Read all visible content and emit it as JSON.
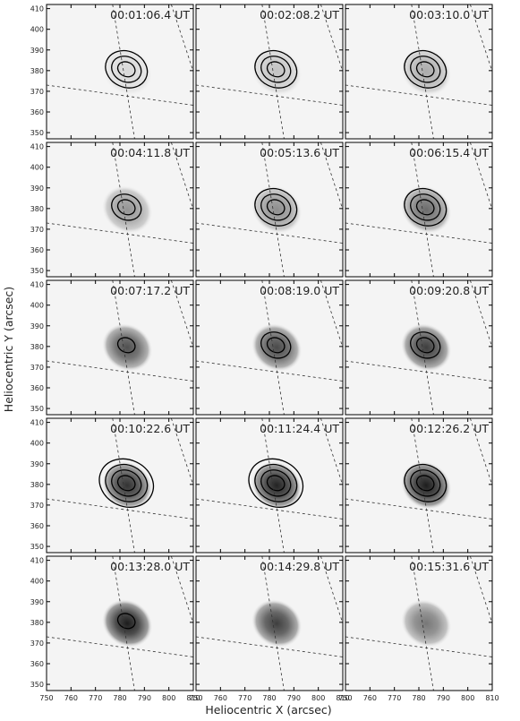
{
  "figure": {
    "x_label": "Heliocentric X (arcsec)",
    "y_label": "Heliocentric Y (arcsec)",
    "xlim": [
      750,
      810
    ],
    "ylim": [
      347,
      412
    ],
    "xticks": [
      750,
      760,
      770,
      780,
      790,
      800,
      810
    ],
    "yticks": [
      350,
      360,
      370,
      380,
      390,
      400,
      410
    ],
    "panels": [
      {
        "label": "00:01:06.4 UT"
      },
      {
        "label": "00:02:08.2 UT"
      },
      {
        "label": "00:03:10.0 UT"
      },
      {
        "label": "00:04:11.8 UT"
      },
      {
        "label": "00:05:13.6 UT"
      },
      {
        "label": "00:06:15.4 UT"
      },
      {
        "label": "00:07:17.2 UT"
      },
      {
        "label": "00:08:19.0 UT"
      },
      {
        "label": "00:09:20.8 UT"
      },
      {
        "label": "00:10:22.6 UT"
      },
      {
        "label": "00:11:24.4 UT"
      },
      {
        "label": "00:12:26.2 UT"
      },
      {
        "label": "00:13:28.0 UT"
      },
      {
        "label": "00:14:29.8 UT"
      },
      {
        "label": "00:15:31.6 UT"
      }
    ]
  }
}
